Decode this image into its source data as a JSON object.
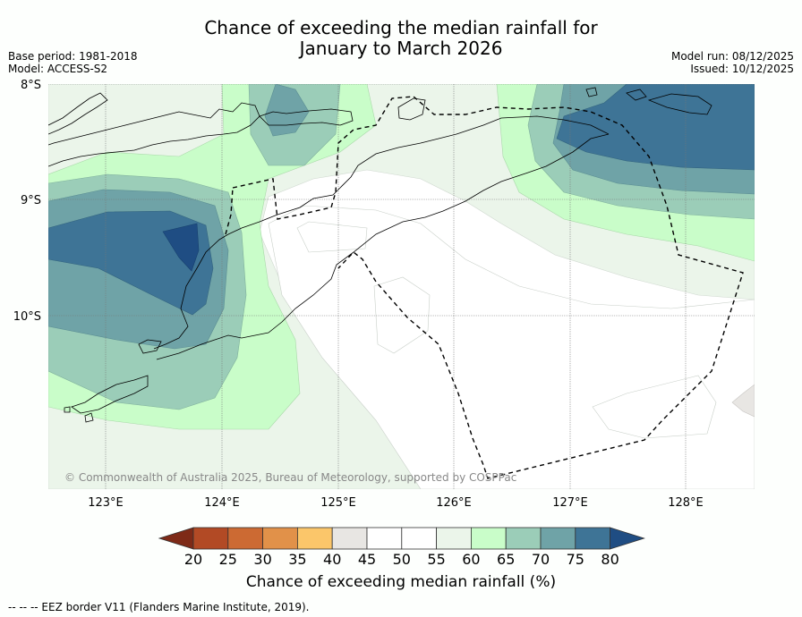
{
  "header": {
    "title_line1": "Chance of exceeding the median rainfall for",
    "title_line2": "January to March 2026",
    "base_period": "Base period: 1981-2018",
    "model": "Model: ACCESS-S2",
    "model_run": "Model run: 08/12/2025",
    "issued": "Issued: 10/12/2025"
  },
  "map": {
    "lat_labels": [
      "8°S",
      "9°S",
      "10°S"
    ],
    "lon_labels": [
      "123°E",
      "124°E",
      "125°E",
      "126°E",
      "127°E",
      "128°E"
    ],
    "copyright": "© Commonwealth of Australia 2025, Bureau of Meteorology, supported by COSPPac"
  },
  "colorbar": {
    "title": "Chance of exceeding median rainfall (%)",
    "ticks": [
      "20",
      "25",
      "30",
      "35",
      "40",
      "45",
      "50",
      "55",
      "60",
      "65",
      "70",
      "75",
      "80"
    ],
    "colors": [
      "#7e2a17",
      "#b24a25",
      "#cc6a33",
      "#e19149",
      "#fbc66a",
      "#e8e6e3",
      "#ffffff",
      "#ffffff",
      "#ebf5ea",
      "#c9fdc9",
      "#9bcdb8",
      "#6fa3a7",
      "#3e7496",
      "#1f4d83"
    ]
  },
  "footnote": "--  --  -- EEZ border V11 (Flanders Marine Institute, 2019)."
}
